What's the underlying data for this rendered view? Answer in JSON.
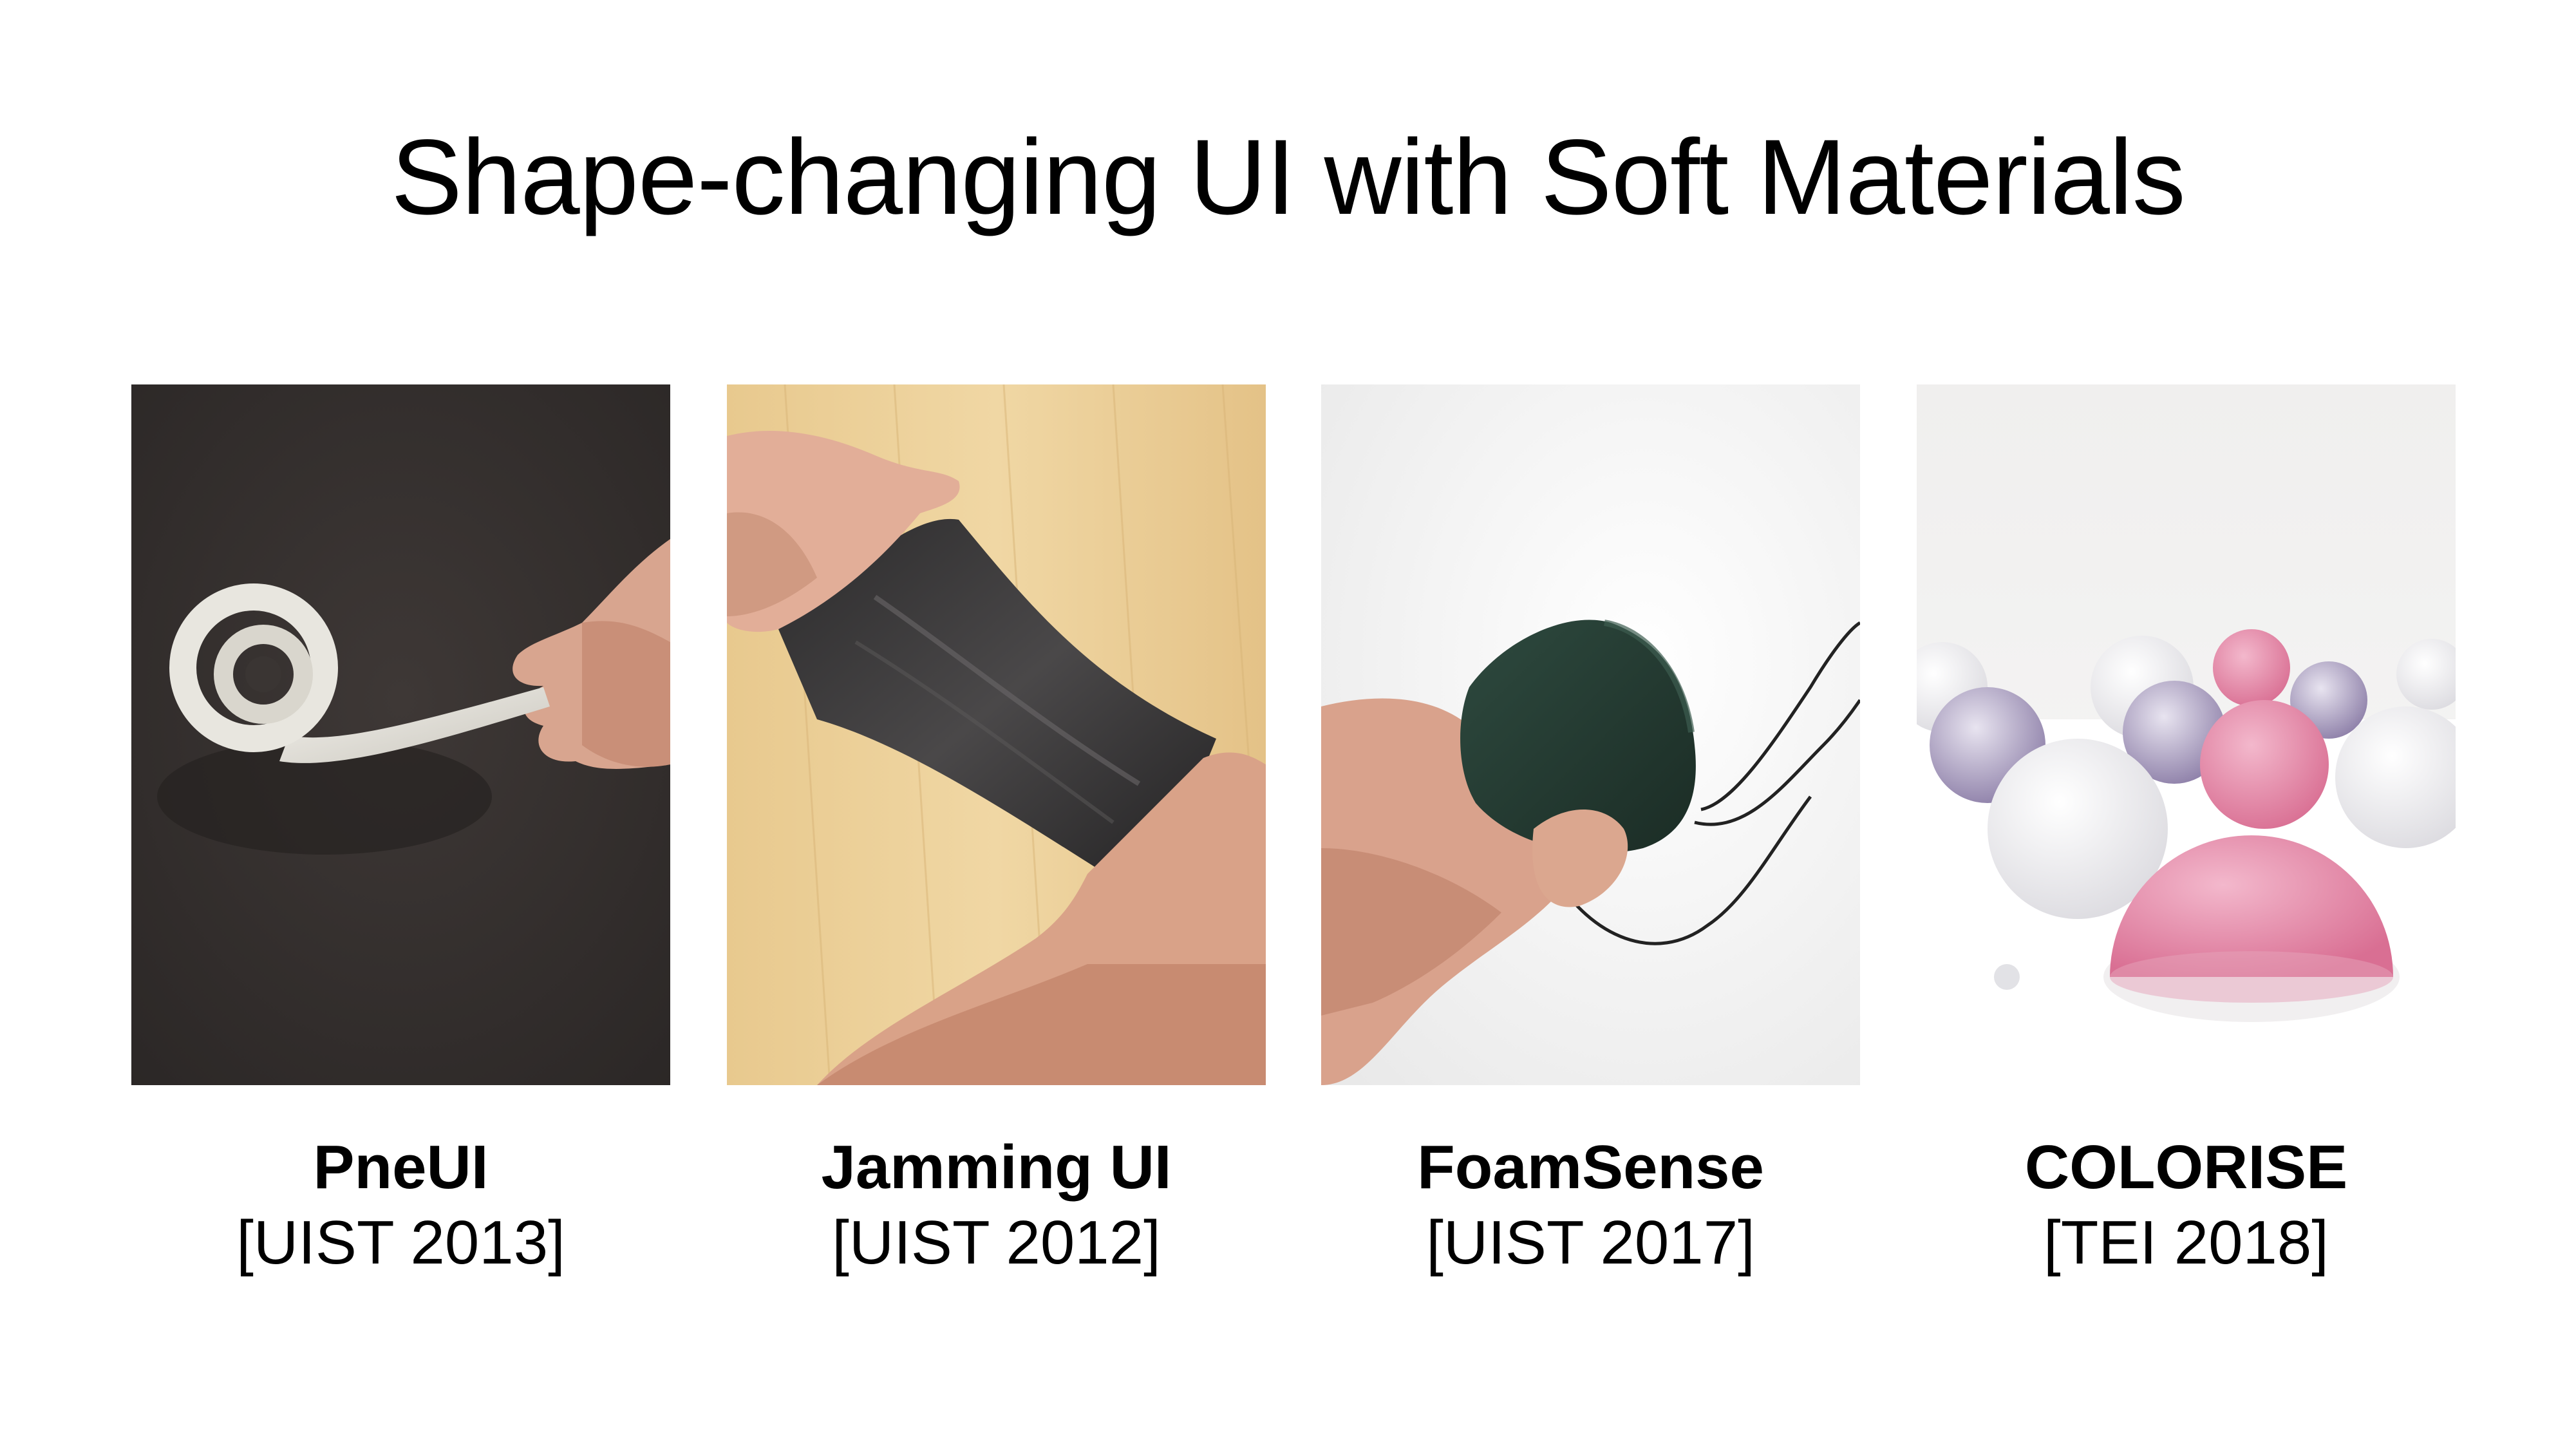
{
  "slide": {
    "title": "Shape-changing UI with Soft Materials"
  },
  "projects": [
    {
      "name": "PneUI",
      "venue": "[UIST 2013]",
      "image": "coiled-silicone-actuator-photo"
    },
    {
      "name": "Jamming UI",
      "venue": "[UIST 2012]",
      "image": "stretched-jamming-sheet-photo"
    },
    {
      "name": "FoamSense",
      "venue": "[UIST 2017]",
      "image": "conductive-foam-sensor-photo"
    },
    {
      "name": "COLORISE",
      "venue": "[TEI 2018]",
      "image": "color-changing-domes-photo"
    }
  ]
}
